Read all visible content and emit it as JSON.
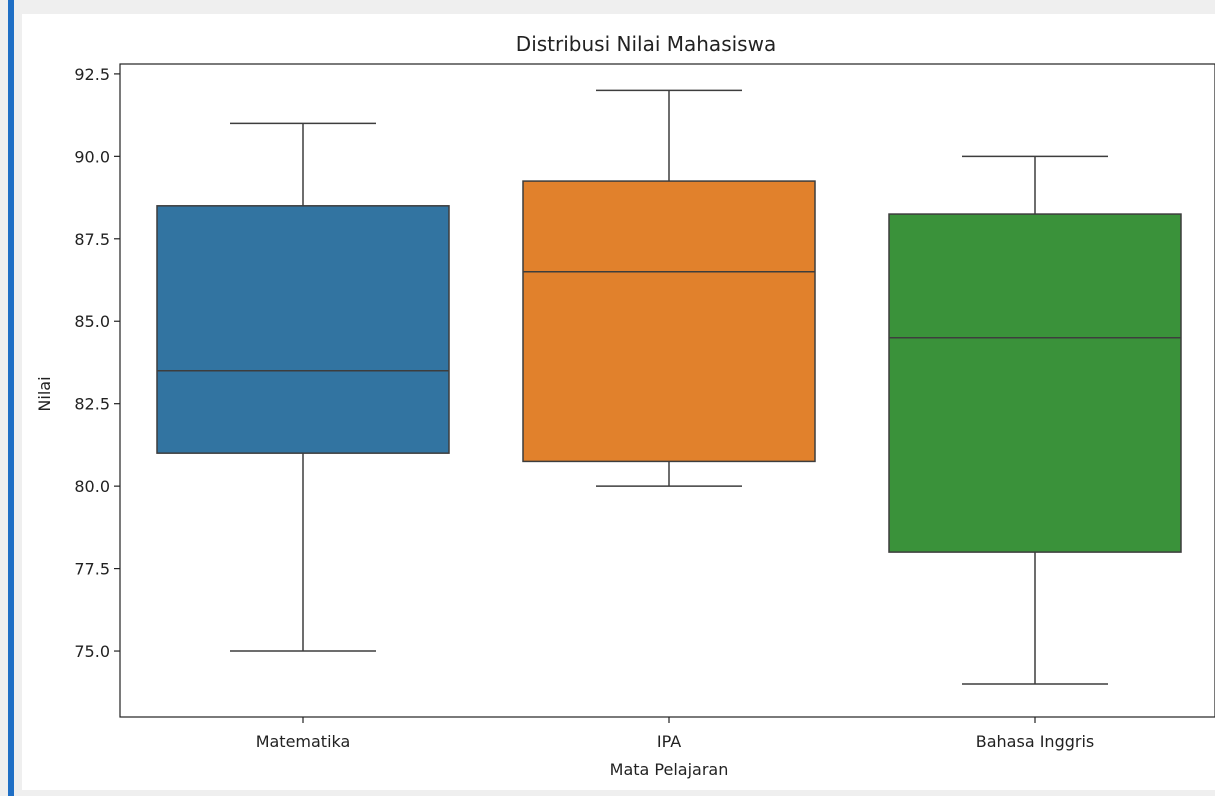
{
  "chart_data": {
    "type": "boxplot",
    "title": "Distribusi Nilai Mahasiswa",
    "xlabel": "Mata Pelajaran",
    "ylabel": "Nilai",
    "ylim": [
      73.0,
      92.8
    ],
    "yticks": [
      "75.0",
      "77.5",
      "80.0",
      "82.5",
      "85.0",
      "87.5",
      "90.0",
      "92.5"
    ],
    "grid": false,
    "categories": [
      "Matematika",
      "IPA",
      "Bahasa Inggris"
    ],
    "boxes": [
      {
        "category": "Matematika",
        "color": "#3274a1",
        "min": 75.0,
        "q1": 81.0,
        "median": 83.5,
        "q3": 88.5,
        "max": 91.0
      },
      {
        "category": "IPA",
        "color": "#e1812c",
        "min": 80.0,
        "q1": 80.75,
        "median": 86.5,
        "q3": 89.25,
        "max": 92.0
      },
      {
        "category": "Bahasa Inggris",
        "color": "#3a923a",
        "min": 74.0,
        "q1": 78.0,
        "median": 84.5,
        "q3": 88.25,
        "max": 90.0
      }
    ]
  },
  "colors": {
    "frame_background": "#efefef",
    "accent_bar": "#1f6fc5",
    "axis": "#222222",
    "box_edge": "#3d3d3d"
  }
}
